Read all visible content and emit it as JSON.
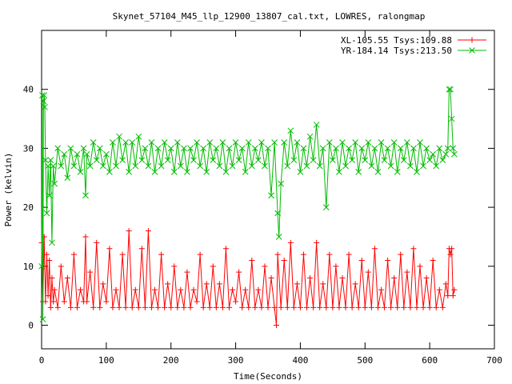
{
  "chart_data": {
    "type": "line",
    "title": "Skynet_57104_M45_llp_12900_13807_cal.txt, LOWRES, ralongmap",
    "xlabel": "Time(Seconds)",
    "ylabel": "Power (kelvin)",
    "xlim": [
      0,
      700
    ],
    "ylim": [
      -4,
      50
    ],
    "xticks": [
      0,
      100,
      200,
      300,
      400,
      500,
      600,
      700
    ],
    "yticks": [
      0,
      10,
      20,
      30,
      40
    ],
    "grid": false,
    "legend_position": "top-right",
    "series": [
      {
        "name": "XL-105.55 Tsys:109.88",
        "color": "#ff0000",
        "marker": "plus",
        "x": [
          0,
          2,
          4,
          6,
          8,
          10,
          12,
          14,
          16,
          18,
          20,
          25,
          30,
          35,
          40,
          45,
          50,
          55,
          60,
          65,
          68,
          70,
          75,
          80,
          85,
          90,
          95,
          100,
          105,
          110,
          115,
          120,
          125,
          130,
          135,
          140,
          145,
          150,
          155,
          160,
          165,
          170,
          175,
          180,
          185,
          190,
          195,
          200,
          205,
          210,
          215,
          220,
          225,
          230,
          235,
          240,
          245,
          250,
          255,
          260,
          265,
          270,
          275,
          280,
          285,
          290,
          295,
          300,
          305,
          310,
          315,
          320,
          325,
          330,
          335,
          340,
          345,
          350,
          355,
          360,
          363,
          365,
          370,
          375,
          380,
          385,
          390,
          395,
          400,
          405,
          410,
          415,
          420,
          425,
          430,
          435,
          440,
          445,
          450,
          455,
          460,
          465,
          470,
          475,
          480,
          485,
          490,
          495,
          500,
          505,
          510,
          515,
          520,
          525,
          530,
          535,
          540,
          545,
          550,
          555,
          560,
          565,
          570,
          575,
          580,
          585,
          590,
          595,
          600,
          605,
          610,
          615,
          620,
          625,
          628,
          630,
          632,
          634,
          636,
          638
        ],
        "values": [
          14,
          4,
          15,
          4,
          12,
          5,
          11,
          3,
          8,
          4,
          6,
          3,
          10,
          4,
          8,
          3,
          12,
          3,
          6,
          4,
          15,
          4,
          9,
          3,
          14,
          3,
          7,
          4,
          13,
          3,
          6,
          3,
          12,
          3,
          16,
          3,
          6,
          3,
          13,
          3,
          16,
          3,
          6,
          3,
          12,
          3,
          7,
          3,
          10,
          3,
          6,
          3,
          9,
          3,
          6,
          4,
          12,
          3,
          7,
          3,
          10,
          3,
          7,
          3,
          13,
          3,
          6,
          4,
          9,
          3,
          6,
          3,
          11,
          3,
          6,
          3,
          10,
          3,
          8,
          3,
          0,
          12,
          3,
          11,
          3,
          14,
          3,
          7,
          3,
          12,
          3,
          8,
          3,
          14,
          3,
          7,
          3,
          12,
          3,
          10,
          3,
          8,
          3,
          12,
          3,
          7,
          3,
          11,
          3,
          9,
          3,
          13,
          3,
          6,
          3,
          11,
          3,
          8,
          3,
          12,
          3,
          9,
          3,
          13,
          3,
          10,
          3,
          8,
          3,
          11,
          3,
          6,
          3,
          7,
          5,
          13,
          12,
          13,
          5,
          6
        ]
      },
      {
        "name": "YR-184.14 Tsys:213.50",
        "color": "#00bb00",
        "marker": "x",
        "x": [
          0,
          1,
          2,
          3,
          4,
          5,
          6,
          8,
          10,
          12,
          14,
          16,
          18,
          20,
          25,
          30,
          35,
          40,
          45,
          50,
          55,
          60,
          65,
          68,
          70,
          75,
          80,
          85,
          90,
          95,
          100,
          105,
          110,
          115,
          120,
          125,
          130,
          135,
          140,
          145,
          150,
          155,
          160,
          165,
          170,
          175,
          180,
          185,
          190,
          195,
          200,
          205,
          210,
          215,
          220,
          225,
          230,
          235,
          240,
          245,
          250,
          255,
          260,
          265,
          270,
          275,
          280,
          285,
          290,
          295,
          300,
          305,
          310,
          315,
          320,
          325,
          330,
          335,
          340,
          345,
          350,
          355,
          360,
          365,
          367,
          370,
          375,
          380,
          385,
          390,
          395,
          400,
          405,
          410,
          415,
          420,
          425,
          430,
          435,
          440,
          445,
          450,
          455,
          460,
          465,
          470,
          475,
          480,
          485,
          490,
          495,
          500,
          505,
          510,
          515,
          520,
          525,
          530,
          535,
          540,
          545,
          550,
          555,
          560,
          565,
          570,
          575,
          580,
          585,
          590,
          595,
          600,
          605,
          610,
          615,
          620,
          625,
          628,
          630,
          632,
          634,
          636,
          638
        ],
        "values": [
          10,
          39,
          1,
          38,
          39,
          37,
          28,
          19,
          27,
          22,
          28,
          14,
          27,
          24,
          30,
          27,
          29,
          25,
          30,
          27,
          29,
          26,
          30,
          22,
          29,
          27,
          31,
          28,
          30,
          27,
          29,
          26,
          31,
          27,
          32,
          28,
          31,
          26,
          31,
          27,
          32,
          28,
          30,
          27,
          31,
          26,
          30,
          27,
          31,
          28,
          30,
          26,
          31,
          27,
          30,
          26,
          30,
          28,
          31,
          27,
          30,
          26,
          31,
          28,
          30,
          27,
          31,
          26,
          30,
          27,
          31,
          28,
          30,
          26,
          31,
          27,
          30,
          28,
          31,
          27,
          30,
          22,
          31,
          19,
          15,
          24,
          31,
          27,
          33,
          28,
          31,
          26,
          30,
          27,
          32,
          28,
          34,
          27,
          30,
          20,
          31,
          28,
          30,
          26,
          31,
          27,
          30,
          28,
          31,
          26,
          30,
          28,
          31,
          27,
          30,
          26,
          31,
          28,
          30,
          27,
          31,
          26,
          30,
          28,
          31,
          27,
          30,
          26,
          31,
          27,
          30,
          28,
          29,
          27,
          30,
          28,
          29,
          30,
          40,
          40,
          35,
          30,
          29
        ]
      }
    ]
  }
}
